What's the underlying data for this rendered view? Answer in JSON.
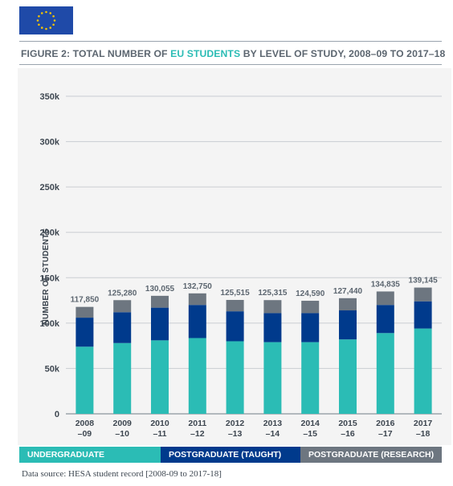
{
  "header": {
    "flag_icon": "eu-flag-icon",
    "title_prefix": "FIGURE 2: TOTAL NUMBER OF ",
    "title_highlight": "EU STUDENTS",
    "title_suffix": " BY LEVEL OF STUDY, 2008–09 TO 2017–18"
  },
  "colors": {
    "undergraduate": "#2bbcb5",
    "taught": "#003a8c",
    "research": "#6d7680",
    "flag": "#1f4aa8",
    "stars": "#f5c400"
  },
  "chart_data": {
    "type": "bar",
    "stacked": true,
    "title": "FIGURE 2: TOTAL NUMBER OF EU STUDENTS BY LEVEL OF STUDY, 2008–09 TO 2017–18",
    "xlabel": "",
    "ylabel": "NUMBER OF STUDENTS",
    "ylim": [
      0,
      350000
    ],
    "yticks": [
      0,
      50000,
      100000,
      150000,
      200000,
      250000,
      300000,
      350000
    ],
    "ytick_labels": [
      "0",
      "50k",
      "100k",
      "150k",
      "200k",
      "250k",
      "300k",
      "350k"
    ],
    "grid": true,
    "legend_position": "bottom",
    "categories": [
      [
        "2008",
        "–09"
      ],
      [
        "2009",
        "–10"
      ],
      [
        "2010",
        "–11"
      ],
      [
        "2011",
        "–12"
      ],
      [
        "2012",
        "–13"
      ],
      [
        "2013",
        "–14"
      ],
      [
        "2014",
        "–15"
      ],
      [
        "2015",
        "–16"
      ],
      [
        "2016",
        "–17"
      ],
      [
        "2017",
        "–18"
      ]
    ],
    "totals": [
      117850,
      125280,
      130055,
      132750,
      125515,
      125315,
      124590,
      127440,
      134835,
      139145
    ],
    "total_labels": [
      "117,850",
      "125,280",
      "130,055",
      "132,750",
      "125,515",
      "125,315",
      "124,590",
      "127,440",
      "134,835",
      "139,145"
    ],
    "series": [
      {
        "name": "UNDERGRADUATE",
        "values": [
          74000,
          78000,
          81000,
          83500,
          80000,
          79000,
          79000,
          82000,
          89000,
          94000
        ]
      },
      {
        "name": "POSTGRADUATE (TAUGHT)",
        "values": [
          32000,
          34000,
          36000,
          36500,
          33000,
          32000,
          32000,
          32000,
          31000,
          30000
        ]
      },
      {
        "name": "POSTGRADUATE (RESEARCH)",
        "values": [
          11850,
          13280,
          13055,
          12750,
          12515,
          14315,
          13590,
          13440,
          14835,
          15145
        ]
      }
    ]
  },
  "legend": {
    "undergraduate": "UNDERGRADUATE",
    "taught": "POSTGRADUATE (TAUGHT)",
    "research": "POSTGRADUATE (RESEARCH)"
  },
  "footer": {
    "source": "Data source: HESA student record [2008-09 to 2017-18]"
  }
}
